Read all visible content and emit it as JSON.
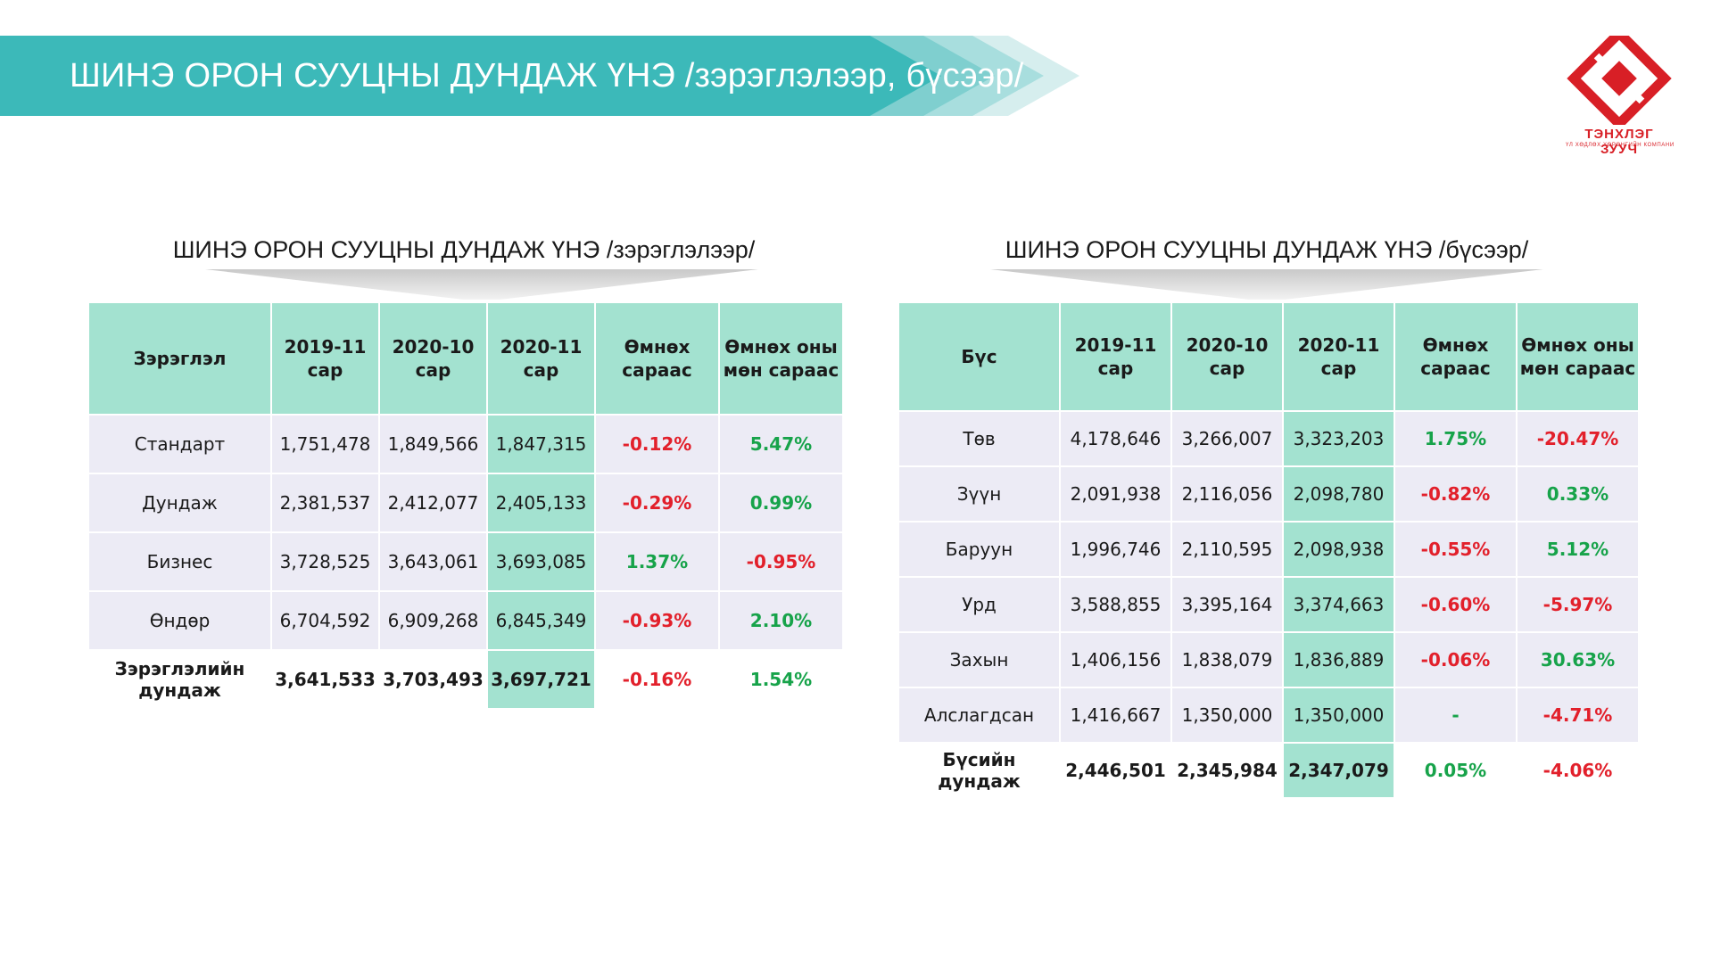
{
  "header": {
    "title": "ШИНЭ ОРОН СУУЦНЫ ДУНДАЖ ҮНЭ /зэрэглэлээр, бүсээр/",
    "banner_color": "#3cb9b9"
  },
  "logo": {
    "name": "ТЭНХЛЭГ ЗУУЧ",
    "subtitle": "ҮЛ ХӨДЛӨХ ХӨРӨНГИЙН КОМПАНИ",
    "color": "#d81f26"
  },
  "grade_table": {
    "title": "ШИНЭ ОРОН СУУЦНЫ ДУНДАЖ ҮНЭ /зэрэглэлээр/",
    "headers": [
      "Зэрэглэл",
      "2019-11 сар",
      "2020-10 сар",
      "2020-11 сар",
      "Өмнөх сараас",
      "Өмнөх оны мөн сараас"
    ],
    "rows": [
      {
        "label": "Стандарт",
        "v2019_11": "1,751,478",
        "v2020_10": "1,849,566",
        "v2020_11": "1,847,315",
        "mom": "-0.12%",
        "yoy": "5.47%"
      },
      {
        "label": "Дундаж",
        "v2019_11": "2,381,537",
        "v2020_10": "2,412,077",
        "v2020_11": "2,405,133",
        "mom": "-0.29%",
        "yoy": "0.99%"
      },
      {
        "label": "Бизнес",
        "v2019_11": "3,728,525",
        "v2020_10": "3,643,061",
        "v2020_11": "3,693,085",
        "mom": "1.37%",
        "yoy": "-0.95%"
      },
      {
        "label": "Өндөр",
        "v2019_11": "6,704,592",
        "v2020_10": "6,909,268",
        "v2020_11": "6,845,349",
        "mom": "-0.93%",
        "yoy": "2.10%"
      }
    ],
    "total": {
      "label": "Зэрэглэлийн дундаж",
      "v2019_11": "3,641,533",
      "v2020_10": "3,703,493",
      "v2020_11": "3,697,721",
      "mom": "-0.16%",
      "yoy": "1.54%"
    }
  },
  "region_table": {
    "title": "ШИНЭ ОРОН СУУЦНЫ ДУНДАЖ ҮНЭ /бүсээр/",
    "headers": [
      "Бүс",
      "2019-11 сар",
      "2020-10 сар",
      "2020-11 сар",
      "Өмнөх сараас",
      "Өмнөх оны мөн сараас"
    ],
    "rows": [
      {
        "label": "Төв",
        "v2019_11": "4,178,646",
        "v2020_10": "3,266,007",
        "v2020_11": "3,323,203",
        "mom": "1.75%",
        "yoy": "-20.47%"
      },
      {
        "label": "Зүүн",
        "v2019_11": "2,091,938",
        "v2020_10": "2,116,056",
        "v2020_11": "2,098,780",
        "mom": "-0.82%",
        "yoy": "0.33%"
      },
      {
        "label": "Баруун",
        "v2019_11": "1,996,746",
        "v2020_10": "2,110,595",
        "v2020_11": "2,098,938",
        "mom": "-0.55%",
        "yoy": "5.12%"
      },
      {
        "label": "Урд",
        "v2019_11": "3,588,855",
        "v2020_10": "3,395,164",
        "v2020_11": "3,374,663",
        "mom": "-0.60%",
        "yoy": "-5.97%"
      },
      {
        "label": "Захын",
        "v2019_11": "1,406,156",
        "v2020_10": "1,838,079",
        "v2020_11": "1,836,889",
        "mom": "-0.06%",
        "yoy": "30.63%"
      },
      {
        "label": "Алслагдсан",
        "v2019_11": "1,416,667",
        "v2020_10": "1,350,000",
        "v2020_11": "1,350,000",
        "mom": "-",
        "yoy": "-4.71%"
      }
    ],
    "total": {
      "label": "Бүсийн дундаж",
      "v2019_11": "2,446,501",
      "v2020_10": "2,345,984",
      "v2020_11": "2,347,079",
      "mom": "0.05%",
      "yoy": "-4.06%"
    }
  },
  "colors": {
    "header_bg": "#a3e2d0",
    "row_bg": "#ecebf5",
    "negative": "#e2202b",
    "positive": "#17a34a"
  }
}
